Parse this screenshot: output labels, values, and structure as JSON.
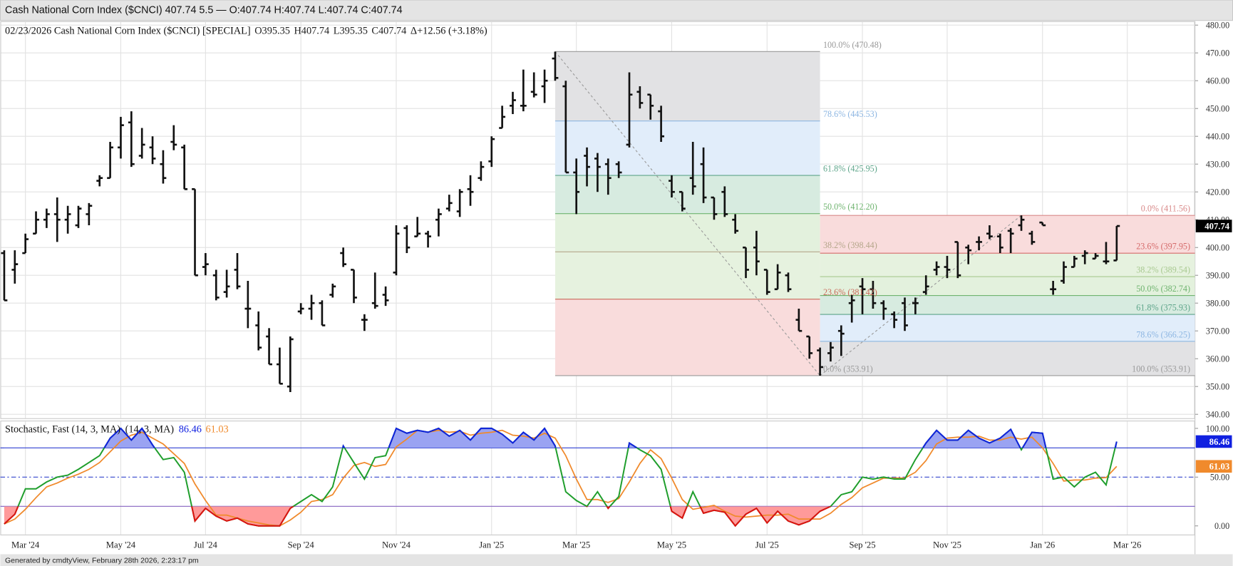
{
  "header": {
    "title": "Cash National Corn Index ($CNCI) 407.74 5.5 — O:407.74 H:407.74 L:407.74 C:407.74"
  },
  "footer": "Generated by cmdtyView, February 28th 2026, 2:23:17 pm",
  "chart_data": [
    {
      "type": "ohlc",
      "legend_text": [
        "02/23/2026 Cash National Corn Index ($CNCI) [SPECIAL]",
        "O395.35",
        "H407.74",
        "L395.35",
        "C407.74",
        "Δ+12.56 (+3.18%)"
      ],
      "color": "#111111",
      "categories": [
        null,
        null,
        "Mar '24",
        null,
        null,
        null,
        null,
        null,
        null,
        null,
        null,
        "May '24",
        null,
        null,
        null,
        null,
        null,
        null,
        null,
        "Jul '24",
        null,
        null,
        null,
        null,
        null,
        null,
        null,
        null,
        "Sep '24",
        null,
        null,
        null,
        null,
        null,
        null,
        null,
        null,
        "Nov '24",
        null,
        null,
        null,
        null,
        null,
        null,
        null,
        null,
        "Jan '25",
        null,
        null,
        null,
        null,
        null,
        null,
        null,
        "Mar '25",
        null,
        null,
        null,
        null,
        null,
        null,
        null,
        null,
        "May '25",
        null,
        null,
        null,
        null,
        null,
        null,
        null,
        null,
        "Jul '25",
        null,
        null,
        null,
        null,
        null,
        null,
        null,
        null,
        "Sep '25",
        null,
        null,
        null,
        null,
        null,
        null,
        null,
        "Nov '25",
        null,
        null,
        null,
        null,
        null,
        null,
        null,
        null,
        "Jan '26",
        null,
        null,
        null,
        null,
        null,
        null,
        null,
        "Mar '26"
      ],
      "open": [
        398,
        392,
        398,
        405,
        410,
        412,
        410,
        408,
        412,
        424,
        425,
        436,
        445,
        433,
        436,
        430,
        438,
        436,
        421,
        393,
        390,
        384,
        392,
        378,
        372,
        368,
        358,
        350,
        377,
        378,
        380,
        383,
        398,
        392,
        374,
        380,
        383,
        391,
        407,
        404,
        405,
        410,
        414,
        413,
        421,
        425,
        431,
        443,
        451,
        451,
        456,
        458,
        468,
        458,
        427,
        433,
        432,
        430,
        430,
        437,
        456,
        455,
        449,
        424,
        420,
        425,
        430,
        418,
        420,
        410,
        400,
        400,
        392,
        385,
        390,
        374,
        368,
        363,
        362,
        370,
        380,
        386,
        385,
        380,
        376,
        380,
        380,
        384,
        392,
        393,
        402,
        400,
        402,
        405,
        404,
        406,
        408,
        405,
        409,
        385,
        388,
        393,
        397,
        396,
        395,
        395.35,
        null
      ],
      "high": [
        399,
        399,
        405,
        413,
        414,
        418,
        415,
        415,
        416,
        426,
        438,
        447,
        449,
        443,
        440,
        435,
        444,
        437,
        421,
        398,
        392,
        392,
        398,
        388,
        377,
        371,
        364,
        368,
        380,
        383,
        381,
        387,
        400,
        392,
        376,
        391,
        386,
        408,
        408,
        411,
        406,
        414,
        419,
        421,
        426,
        431,
        440,
        451,
        456,
        464,
        463,
        464,
        470.48,
        460,
        432,
        436,
        434,
        432,
        431,
        463,
        458,
        455,
        451,
        426,
        420,
        438,
        436,
        418,
        422,
        412,
        400,
        406,
        392,
        394,
        391,
        378,
        368,
        364,
        366,
        372,
        383,
        389,
        388,
        381,
        377,
        382,
        382,
        390,
        395,
        397,
        402,
        401,
        404,
        408,
        405,
        407,
        411.56,
        406,
        409,
        388,
        395,
        397,
        399,
        398,
        402,
        407.74,
        null
      ],
      "low": [
        381,
        387,
        398,
        405,
        407,
        402,
        405,
        407,
        408,
        422,
        425,
        432,
        429,
        432,
        430,
        423,
        435,
        421,
        390,
        390,
        381,
        382,
        385,
        371,
        363,
        358,
        351,
        348,
        376,
        374,
        372,
        382,
        393,
        380,
        370,
        378,
        379,
        390,
        398,
        404,
        400,
        404,
        413,
        411,
        415,
        424,
        429,
        443,
        448,
        449,
        454,
        452,
        460,
        427,
        412,
        422,
        420,
        419,
        425,
        436,
        450,
        446,
        438,
        418,
        413,
        419,
        416,
        410,
        411,
        405,
        389,
        390,
        383,
        385,
        384,
        370,
        360,
        353.91,
        359,
        361,
        373,
        376,
        378,
        374,
        371,
        370,
        376,
        383,
        390,
        389,
        389,
        394,
        399,
        403,
        398,
        398,
        406,
        401,
        408,
        383,
        387,
        393,
        394,
        396,
        394,
        395.35,
        null
      ],
      "close": [
        381,
        394,
        403,
        410,
        412,
        410,
        412,
        414,
        415,
        425,
        436,
        444,
        430,
        437,
        432,
        425,
        437,
        421,
        390,
        394,
        382,
        386,
        386,
        378,
        364,
        358,
        351,
        367,
        378,
        380,
        372,
        386,
        394,
        382,
        374,
        379,
        381,
        405,
        400,
        405,
        404,
        412,
        416,
        420,
        420,
        429,
        439,
        447,
        453,
        451,
        455,
        460,
        461,
        427,
        420,
        429,
        429,
        425,
        427,
        455,
        452,
        451,
        440,
        420,
        414,
        422,
        418,
        412,
        412,
        406,
        392,
        395,
        384,
        391,
        385,
        370,
        362,
        357,
        364,
        369,
        381,
        385,
        380,
        378,
        374,
        372,
        380,
        386,
        393,
        392,
        390,
        399,
        402,
        404,
        400,
        405,
        410,
        402,
        408,
        385,
        393,
        396,
        398,
        397,
        395,
        407.74,
        null
      ],
      "ylim": [
        338.6,
        481.4
      ],
      "yticks": [
        {
          "value": 340,
          "label": "340.00"
        },
        {
          "value": 350,
          "label": "350.00"
        },
        {
          "value": 360,
          "label": "360.00"
        },
        {
          "value": 370,
          "label": "370.00"
        },
        {
          "value": 380,
          "label": "380.00"
        },
        {
          "value": 390,
          "label": "390.00"
        },
        {
          "value": 400,
          "label": "400.00"
        },
        {
          "value": 410,
          "label": "410.00"
        },
        {
          "value": 420,
          "label": "420.00"
        },
        {
          "value": 430,
          "label": "430.00"
        },
        {
          "value": 440,
          "label": "440.00"
        },
        {
          "value": 450,
          "label": "450.00"
        },
        {
          "value": 460,
          "label": "460.00"
        },
        {
          "value": 470,
          "label": "470.00"
        },
        {
          "value": 480,
          "label": "480.00"
        }
      ],
      "grid": true,
      "fibonacci": [
        {
          "levels": [
            {
              "value": 470.48,
              "label": "100.0% (470.48)"
            },
            {
              "value": 445.53,
              "label": "78.6% (445.53)"
            },
            {
              "value": 425.95,
              "label": "61.8% (425.95)"
            },
            {
              "value": 412.2,
              "label": "50.0% (412.20)"
            },
            {
              "value": 398.44,
              "label": "38.2% (398.44)"
            },
            {
              "value": 381.42,
              "label": "23.6% (381.42)"
            },
            {
              "value": 353.91,
              "label": "0.0% (353.91)"
            }
          ],
          "line_colors": [
            "#9a9a9a",
            "#8db6e2",
            "#5ea58a",
            "#6fb46f",
            "#b5a68a",
            "#c96a5a",
            "#9a9a9a"
          ],
          "band_colors": [
            "#e2e2e4",
            "#e1edfa",
            "#d7ebe0",
            "#e3f1dd",
            "#e6f2df",
            "#f9dcdc"
          ]
        },
        {
          "levels": [
            {
              "value": 411.56,
              "label": "0.0% (411.56)"
            },
            {
              "value": 397.95,
              "label": "23.6% (397.95)"
            },
            {
              "value": 389.54,
              "label": "38.2% (389.54)"
            },
            {
              "value": 382.74,
              "label": "50.0% (382.74)"
            },
            {
              "value": 375.93,
              "label": "61.8% (375.93)"
            },
            {
              "value": 366.25,
              "label": "78.6% (366.25)"
            },
            {
              "value": 353.91,
              "label": "100.0% (353.91)"
            }
          ],
          "line_colors": [
            "#d98a8a",
            "#d56a6a",
            "#a8c990",
            "#6fb46f",
            "#5ea58a",
            "#8db6e2",
            "#9a9a9a"
          ],
          "band_colors": [
            "#f9dcdc",
            "#e6f2df",
            "#e3f1dd",
            "#d7ebe0",
            "#e1edfa",
            "#e2e2e4"
          ]
        }
      ]
    },
    {
      "type": "line",
      "title": "Stochastic, Fast (14, 3, MA)",
      "subtitle": "(14, 3, MA)",
      "series": [
        {
          "color": "#1f9e2c",
          "overbought_color": "#1020e0",
          "oversold_color": "#e01010",
          "values": [
            2,
            12,
            38,
            38,
            45,
            50,
            52,
            58,
            65,
            72,
            90,
            100,
            88,
            100,
            83,
            68,
            70,
            55,
            5,
            18,
            10,
            5,
            8,
            2,
            0,
            0,
            0,
            18,
            25,
            32,
            25,
            40,
            82,
            65,
            48,
            70,
            72,
            100,
            95,
            98,
            96,
            100,
            92,
            98,
            88,
            100,
            100,
            94,
            85,
            96,
            88,
            100,
            82,
            35,
            26,
            20,
            35,
            18,
            30,
            85,
            78,
            72,
            58,
            15,
            8,
            35,
            13,
            16,
            14,
            0,
            12,
            18,
            3,
            15,
            5,
            1,
            5,
            15,
            20,
            32,
            35,
            50,
            48,
            50,
            48,
            48,
            68,
            85,
            98,
            88,
            88,
            98,
            90,
            85,
            90,
            99,
            78,
            96,
            95,
            48,
            50,
            40,
            50,
            55,
            42,
            86.46,
            null
          ]
        },
        {
          "color": "#f08a2c",
          "values": [
            2,
            7,
            17,
            29,
            40,
            44,
            49,
            53,
            58,
            65,
            76,
            87,
            93,
            96,
            90,
            84,
            74,
            64,
            43,
            26,
            11,
            11,
            8,
            5,
            3,
            1,
            0,
            6,
            14,
            25,
            27,
            32,
            49,
            62,
            65,
            61,
            63,
            81,
            89,
            98,
            96,
            98,
            96,
            97,
            93,
            95,
            96,
            98,
            93,
            92,
            90,
            95,
            90,
            72,
            48,
            27,
            27,
            24,
            28,
            45,
            64,
            78,
            69,
            49,
            27,
            17,
            19,
            21,
            15,
            10,
            9,
            10,
            11,
            11,
            12,
            7,
            7,
            7,
            13,
            22,
            29,
            39,
            44,
            49,
            49,
            49,
            55,
            67,
            84,
            90,
            91,
            91,
            92,
            88,
            88,
            91,
            89,
            91,
            80,
            64,
            46,
            47,
            47,
            49,
            49.5,
            61.03,
            null
          ]
        }
      ],
      "fill_colors": {
        "overbought": "#9aa3f2",
        "oversold": "#ff9a9a"
      },
      "reference_lines": [
        {
          "value": 80,
          "color": "#2233cc",
          "style": "solid"
        },
        {
          "value": 50,
          "color": "#3344cc",
          "style": "dashdot"
        },
        {
          "value": 20,
          "color": "#7a5cc4",
          "style": "solid"
        }
      ],
      "ylim": [
        -8.9,
        108
      ],
      "yticks": [
        {
          "value": 0,
          "label": "0.00"
        },
        {
          "value": 50,
          "label": "50.00"
        },
        {
          "value": 100,
          "label": "100.00"
        }
      ]
    }
  ]
}
